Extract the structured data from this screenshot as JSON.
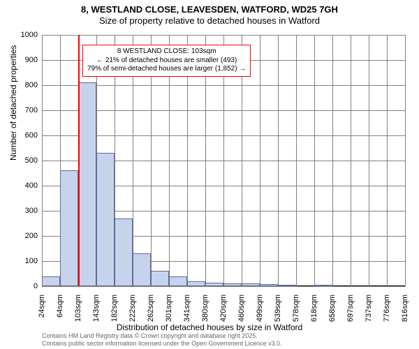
{
  "title_main": "8, WESTLAND CLOSE, LEAVESDEN, WATFORD, WD25 7GH",
  "title_sub": "Size of property relative to detached houses in Watford",
  "y_axis_title": "Number of detached properties",
  "x_axis_title": "Distribution of detached houses by size in Watford",
  "footer_line1": "Contains HM Land Registry data © Crown copyright and database right 2025.",
  "footer_line2": "Contains public sector information licensed under the Open Government Licence v3.0.",
  "chart": {
    "type": "histogram",
    "ylim": [
      0,
      1000
    ],
    "ytick_step": 100,
    "yticks": [
      0,
      100,
      200,
      300,
      400,
      500,
      600,
      700,
      800,
      900,
      1000
    ],
    "xtick_labels": [
      "24sqm",
      "64sqm",
      "103sqm",
      "143sqm",
      "182sqm",
      "222sqm",
      "262sqm",
      "301sqm",
      "341sqm",
      "380sqm",
      "420sqm",
      "460sqm",
      "499sqm",
      "539sqm",
      "578sqm",
      "618sqm",
      "658sqm",
      "697sqm",
      "737sqm",
      "776sqm",
      "816sqm"
    ],
    "bar_values": [
      40,
      460,
      810,
      530,
      270,
      130,
      60,
      40,
      20,
      15,
      12,
      10,
      8,
      6,
      0,
      4,
      0,
      0,
      0,
      0
    ],
    "bar_fill": "#c6d3ec",
    "bar_border": "#5b6b99",
    "grid_color": "#808080",
    "background_color": "#ffffff",
    "reference_line": {
      "x_index": 2,
      "color": "#ff0000"
    },
    "annotation": {
      "line1": "8 WESTLAND CLOSE: 103sqm",
      "line2": "← 21% of detached houses are smaller (493)",
      "line3": "79% of semi-detached houses are larger (1,852) →",
      "border_color": "#ff0000",
      "background_color": "#ffffff"
    }
  }
}
